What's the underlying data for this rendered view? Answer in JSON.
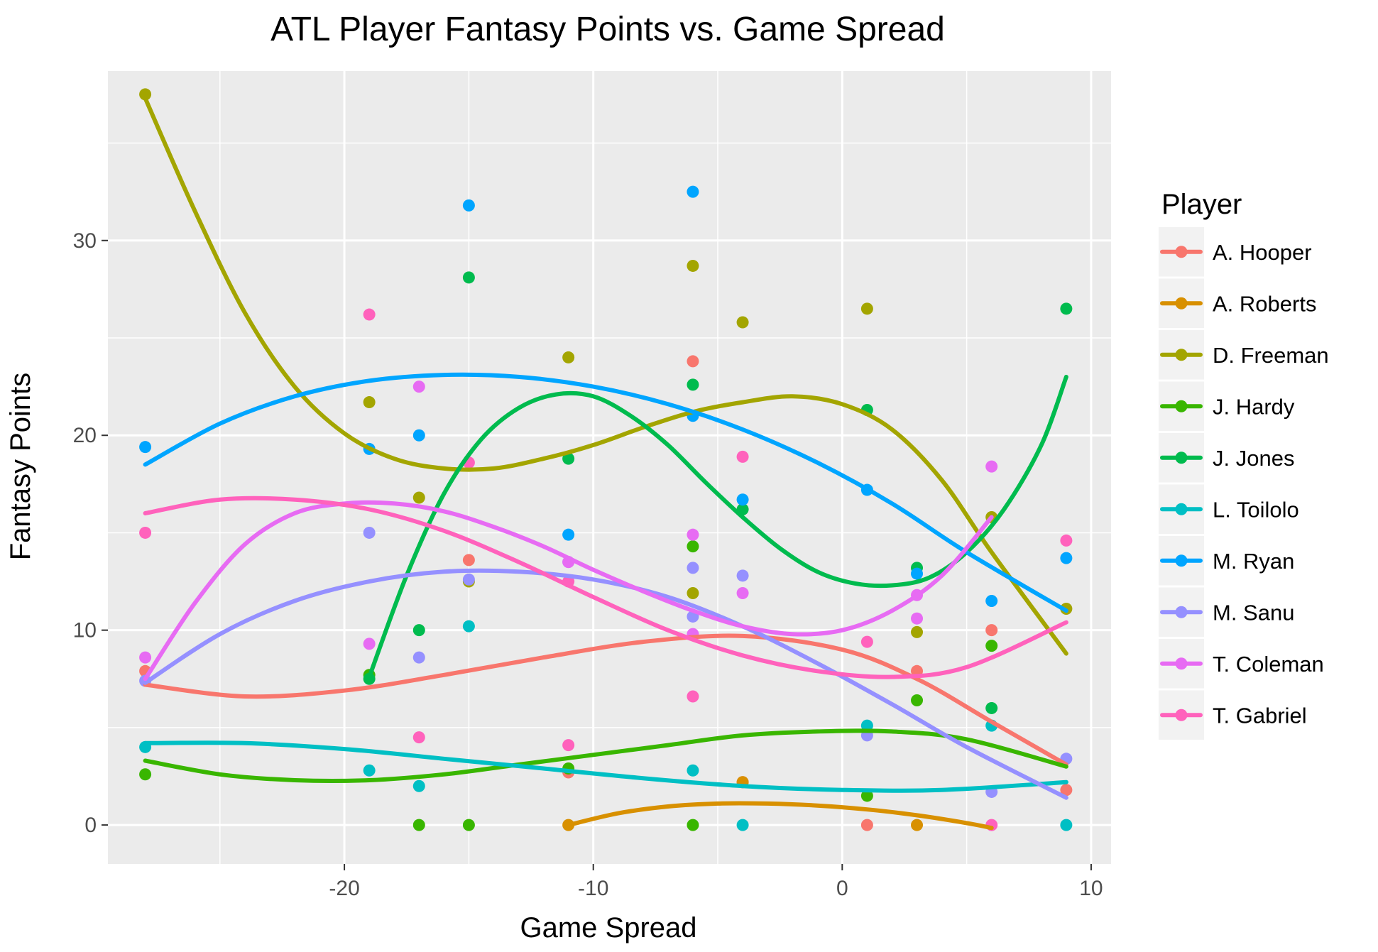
{
  "chart_data": {
    "type": "scatter",
    "title": "ATL Player Fantasy Points vs. Game Spread",
    "xlabel": "Game Spread",
    "ylabel": "Fantasy Points",
    "xlim": [
      -29.5,
      10.8
    ],
    "ylim": [
      -2.0,
      38.7
    ],
    "x_ticks": [
      -20,
      -10,
      0,
      10
    ],
    "x_tick_labels": [
      "-20",
      "-10",
      "0",
      "10"
    ],
    "y_ticks": [
      0,
      10,
      20,
      30
    ],
    "y_tick_labels": [
      "0",
      "10",
      "20",
      "30"
    ],
    "grid": true,
    "panel_background": "#ebebeb",
    "grid_color": "#ffffff",
    "legend": {
      "title": "Player",
      "placement": "right"
    },
    "series": [
      {
        "name": "A. Hooper",
        "color": "#f8766d",
        "points": [
          [
            -28,
            7.9
          ],
          [
            -15,
            13.6
          ],
          [
            -11,
            2.7
          ],
          [
            -6,
            23.8
          ],
          [
            -4,
            2.2
          ],
          [
            1,
            0
          ],
          [
            3,
            7.9
          ],
          [
            6,
            10.0
          ],
          [
            9,
            1.8
          ]
        ],
        "smooth": [
          [
            -28,
            7.2
          ],
          [
            -24,
            6.6
          ],
          [
            -20,
            6.9
          ],
          [
            -16,
            7.7
          ],
          [
            -12,
            8.6
          ],
          [
            -8,
            9.4
          ],
          [
            -4,
            9.7
          ],
          [
            0,
            9.0
          ],
          [
            3,
            7.5
          ],
          [
            6,
            5.3
          ],
          [
            9,
            3.1
          ]
        ]
      },
      {
        "name": "A. Roberts",
        "color": "#d89000",
        "points": [
          [
            -11,
            0
          ],
          [
            -4,
            2.2
          ],
          [
            3,
            0
          ]
        ],
        "smooth": [
          [
            -11,
            0
          ],
          [
            -9,
            0.6
          ],
          [
            -7,
            0.95
          ],
          [
            -5,
            1.1
          ],
          [
            -3,
            1.1
          ],
          [
            -1,
            1.0
          ],
          [
            1,
            0.8
          ],
          [
            3,
            0.5
          ],
          [
            5,
            0.1
          ],
          [
            6,
            -0.15
          ]
        ]
      },
      {
        "name": "D. Freeman",
        "color": "#a3a500",
        "points": [
          [
            -28,
            37.5
          ],
          [
            -19,
            21.7
          ],
          [
            -17,
            16.8
          ],
          [
            -15,
            12.5
          ],
          [
            -11,
            24.0
          ],
          [
            -6,
            28.7
          ],
          [
            -6,
            11.9
          ],
          [
            -4,
            25.8
          ],
          [
            1,
            26.5
          ],
          [
            3,
            9.9
          ],
          [
            6,
            15.8
          ],
          [
            9,
            11.1
          ]
        ],
        "smooth": [
          [
            -28,
            37.3
          ],
          [
            -26,
            31.5
          ],
          [
            -24,
            26.3
          ],
          [
            -22,
            22.5
          ],
          [
            -20,
            20.1
          ],
          [
            -18,
            18.8
          ],
          [
            -16,
            18.3
          ],
          [
            -14,
            18.3
          ],
          [
            -12,
            18.8
          ],
          [
            -10,
            19.5
          ],
          [
            -8,
            20.4
          ],
          [
            -6,
            21.2
          ],
          [
            -4,
            21.7
          ],
          [
            -2,
            22.0
          ],
          [
            0,
            21.6
          ],
          [
            2,
            20.3
          ],
          [
            4,
            17.7
          ],
          [
            6,
            14.0
          ],
          [
            9,
            8.8
          ]
        ]
      },
      {
        "name": "J. Hardy",
        "color": "#39b600",
        "points": [
          [
            -28,
            2.6
          ],
          [
            -19,
            7.7
          ],
          [
            -17,
            0
          ],
          [
            -15,
            0
          ],
          [
            -11,
            2.9
          ],
          [
            -6,
            14.3
          ],
          [
            -6,
            0
          ],
          [
            1,
            1.5
          ],
          [
            3,
            6.4
          ],
          [
            6,
            9.2
          ]
        ],
        "smooth": [
          [
            -28,
            3.3
          ],
          [
            -25,
            2.6
          ],
          [
            -22,
            2.3
          ],
          [
            -19,
            2.3
          ],
          [
            -16,
            2.6
          ],
          [
            -13,
            3.1
          ],
          [
            -10,
            3.6
          ],
          [
            -7,
            4.1
          ],
          [
            -4,
            4.6
          ],
          [
            -1,
            4.8
          ],
          [
            2,
            4.8
          ],
          [
            5,
            4.4
          ],
          [
            9,
            3.0
          ]
        ]
      },
      {
        "name": "J. Jones",
        "color": "#00bb4e",
        "points": [
          [
            -19,
            7.5
          ],
          [
            -17,
            10.0
          ],
          [
            -15,
            28.1
          ],
          [
            -11,
            18.8
          ],
          [
            -6,
            22.6
          ],
          [
            -4,
            16.2
          ],
          [
            1,
            21.3
          ],
          [
            3,
            13.2
          ],
          [
            6,
            6.0
          ],
          [
            9,
            26.5
          ]
        ],
        "smooth": [
          [
            -19,
            7.6
          ],
          [
            -17.5,
            12.8
          ],
          [
            -16,
            17.0
          ],
          [
            -14.5,
            19.8
          ],
          [
            -13,
            21.4
          ],
          [
            -11.5,
            22.1
          ],
          [
            -10,
            22.0
          ],
          [
            -8.5,
            21.0
          ],
          [
            -7,
            19.5
          ],
          [
            -5.5,
            17.6
          ],
          [
            -4,
            15.8
          ],
          [
            -2.5,
            14.2
          ],
          [
            -1,
            13.0
          ],
          [
            0.5,
            12.4
          ],
          [
            2,
            12.3
          ],
          [
            3.5,
            12.7
          ],
          [
            5,
            14.0
          ],
          [
            6.5,
            16.2
          ],
          [
            8,
            19.5
          ],
          [
            9,
            23.0
          ]
        ]
      },
      {
        "name": "L. Toilolo",
        "color": "#00bfc4",
        "points": [
          [
            -28,
            4.0
          ],
          [
            -19,
            2.8
          ],
          [
            -17,
            2.0
          ],
          [
            -15,
            10.2
          ],
          [
            -6,
            2.8
          ],
          [
            -4,
            0
          ],
          [
            1,
            5.1
          ],
          [
            6,
            5.1
          ],
          [
            9,
            0
          ]
        ],
        "smooth": [
          [
            -28,
            4.2
          ],
          [
            -24,
            4.2
          ],
          [
            -20,
            3.9
          ],
          [
            -16,
            3.4
          ],
          [
            -12,
            2.9
          ],
          [
            -8,
            2.4
          ],
          [
            -4,
            2.0
          ],
          [
            0,
            1.8
          ],
          [
            4,
            1.8
          ],
          [
            9,
            2.2
          ]
        ]
      },
      {
        "name": "M. Ryan",
        "color": "#00a5ff",
        "points": [
          [
            -28,
            19.4
          ],
          [
            -19,
            19.3
          ],
          [
            -17,
            20.0
          ],
          [
            -15,
            31.8
          ],
          [
            -11,
            14.9
          ],
          [
            -6,
            32.5
          ],
          [
            -6,
            21.0
          ],
          [
            -4,
            16.7
          ],
          [
            1,
            17.2
          ],
          [
            3,
            12.9
          ],
          [
            6,
            11.5
          ],
          [
            9,
            13.7
          ]
        ],
        "smooth": [
          [
            -28,
            18.5
          ],
          [
            -25,
            20.6
          ],
          [
            -22,
            22.0
          ],
          [
            -19,
            22.8
          ],
          [
            -16,
            23.1
          ],
          [
            -13,
            23.0
          ],
          [
            -10,
            22.5
          ],
          [
            -7,
            21.6
          ],
          [
            -4,
            20.3
          ],
          [
            -1,
            18.6
          ],
          [
            2,
            16.5
          ],
          [
            5,
            14.0
          ],
          [
            9,
            11.0
          ]
        ]
      },
      {
        "name": "M. Sanu",
        "color": "#9590ff",
        "points": [
          [
            -28,
            7.4
          ],
          [
            -19,
            15.0
          ],
          [
            -17,
            8.6
          ],
          [
            -15,
            12.6
          ],
          [
            -11,
            13.5
          ],
          [
            -6,
            13.2
          ],
          [
            -6,
            10.7
          ],
          [
            -4,
            12.8
          ],
          [
            1,
            4.6
          ],
          [
            6,
            1.7
          ],
          [
            9,
            3.4
          ]
        ],
        "smooth": [
          [
            -28,
            7.3
          ],
          [
            -25,
            9.8
          ],
          [
            -22,
            11.5
          ],
          [
            -19,
            12.5
          ],
          [
            -16,
            13.0
          ],
          [
            -13,
            13.0
          ],
          [
            -10,
            12.6
          ],
          [
            -7,
            11.7
          ],
          [
            -4,
            10.2
          ],
          [
            -1,
            8.3
          ],
          [
            2,
            6.2
          ],
          [
            5,
            4.0
          ],
          [
            9,
            1.4
          ]
        ]
      },
      {
        "name": "T. Coleman",
        "color": "#e76bf3",
        "points": [
          [
            -28,
            8.6
          ],
          [
            -19,
            9.3
          ],
          [
            -17,
            22.5
          ],
          [
            -11,
            13.5
          ],
          [
            -6,
            14.9
          ],
          [
            -6,
            9.8
          ],
          [
            -4,
            11.9
          ],
          [
            3,
            10.6
          ],
          [
            3,
            11.8
          ],
          [
            6,
            18.4
          ]
        ],
        "smooth": [
          [
            -28,
            7.5
          ],
          [
            -26,
            11.4
          ],
          [
            -24,
            14.4
          ],
          [
            -22,
            16.0
          ],
          [
            -20,
            16.5
          ],
          [
            -18,
            16.5
          ],
          [
            -16,
            16.1
          ],
          [
            -14,
            15.3
          ],
          [
            -12,
            14.3
          ],
          [
            -10,
            13.1
          ],
          [
            -8,
            12.0
          ],
          [
            -6,
            11.0
          ],
          [
            -4,
            10.2
          ],
          [
            -2,
            9.8
          ],
          [
            0,
            10.0
          ],
          [
            2,
            11.0
          ],
          [
            4,
            12.8
          ],
          [
            6,
            15.8
          ]
        ]
      },
      {
        "name": "T. Gabriel",
        "color": "#ff62bc",
        "points": [
          [
            -28,
            15.0
          ],
          [
            -19,
            26.2
          ],
          [
            -17,
            4.5
          ],
          [
            -15,
            18.6
          ],
          [
            -11,
            12.5
          ],
          [
            -11,
            4.1
          ],
          [
            -6,
            6.6
          ],
          [
            -4,
            18.9
          ],
          [
            1,
            9.4
          ],
          [
            6,
            0
          ],
          [
            9,
            14.6
          ]
        ],
        "smooth": [
          [
            -28,
            16.0
          ],
          [
            -25,
            16.7
          ],
          [
            -22,
            16.7
          ],
          [
            -19,
            16.2
          ],
          [
            -16,
            15.1
          ],
          [
            -13,
            13.5
          ],
          [
            -10,
            11.7
          ],
          [
            -7,
            10.0
          ],
          [
            -4,
            8.7
          ],
          [
            -1,
            7.9
          ],
          [
            2,
            7.6
          ],
          [
            5,
            8.1
          ],
          [
            9,
            10.4
          ]
        ]
      }
    ]
  }
}
